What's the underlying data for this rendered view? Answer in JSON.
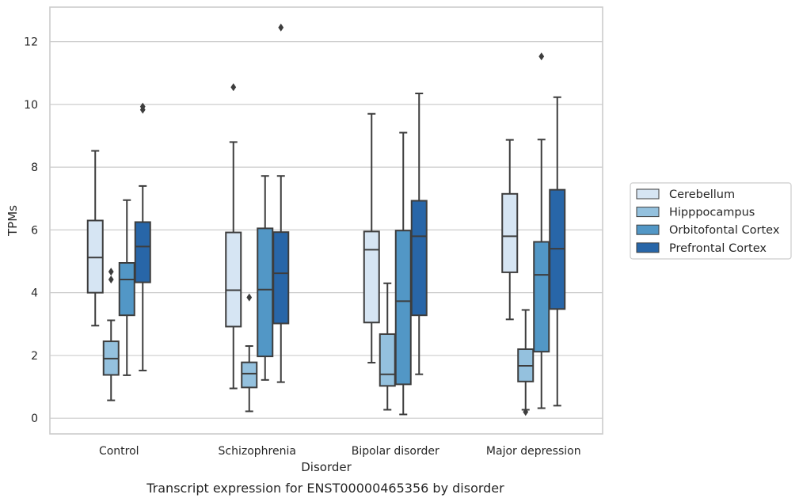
{
  "caption": "Transcript expression for ENST00000465356 by disorder",
  "chart_data": {
    "type": "box",
    "xlabel": "Disorder",
    "ylabel": "TPMs",
    "ylim": [
      -0.5,
      13.1
    ],
    "yticks": [
      0,
      2,
      4,
      6,
      8,
      10,
      12
    ],
    "grid": "horizontal",
    "legend_position": "right",
    "categories": [
      "Control",
      "Schizophrenia",
      "Bipolar disorder",
      "Major depression"
    ],
    "series": [
      {
        "name": "Cerebellum",
        "color": "#d6e5f3",
        "boxes": [
          {
            "whislo": 2.95,
            "q1": 4.0,
            "med": 5.12,
            "q3": 6.3,
            "whishi": 8.52,
            "fliers": []
          },
          {
            "whislo": 0.95,
            "q1": 2.92,
            "med": 4.08,
            "q3": 5.92,
            "whishi": 8.8,
            "fliers": [
              10.55
            ]
          },
          {
            "whislo": 1.77,
            "q1": 3.05,
            "med": 5.37,
            "q3": 5.95,
            "whishi": 9.7,
            "fliers": []
          },
          {
            "whislo": 3.15,
            "q1": 4.65,
            "med": 5.8,
            "q3": 7.15,
            "whishi": 8.87,
            "fliers": []
          }
        ]
      },
      {
        "name": "Hipppocampus",
        "color": "#94c1de",
        "boxes": [
          {
            "whislo": 0.57,
            "q1": 1.38,
            "med": 1.9,
            "q3": 2.45,
            "whishi": 3.12,
            "fliers": [
              4.42,
              4.67
            ]
          },
          {
            "whislo": 0.22,
            "q1": 0.98,
            "med": 1.42,
            "q3": 1.78,
            "whishi": 2.3,
            "fliers": [
              3.85
            ]
          },
          {
            "whislo": 0.27,
            "q1": 1.03,
            "med": 1.4,
            "q3": 2.68,
            "whishi": 4.3,
            "fliers": []
          },
          {
            "whislo": 0.27,
            "q1": 1.17,
            "med": 1.67,
            "q3": 2.2,
            "whishi": 3.45,
            "fliers": [
              0.2
            ]
          }
        ]
      },
      {
        "name": "Orbitofontal Cortex",
        "color": "#5297c6",
        "boxes": [
          {
            "whislo": 1.37,
            "q1": 3.28,
            "med": 4.42,
            "q3": 4.95,
            "whishi": 6.95,
            "fliers": []
          },
          {
            "whislo": 1.22,
            "q1": 1.97,
            "med": 4.1,
            "q3": 6.05,
            "whishi": 7.72,
            "fliers": []
          },
          {
            "whislo": 0.12,
            "q1": 1.08,
            "med": 3.73,
            "q3": 5.98,
            "whishi": 9.1,
            "fliers": []
          },
          {
            "whislo": 0.32,
            "q1": 2.12,
            "med": 4.57,
            "q3": 5.62,
            "whishi": 8.88,
            "fliers": [
              11.53
            ]
          }
        ]
      },
      {
        "name": "Prefrontal Cortex",
        "color": "#2866a8",
        "boxes": [
          {
            "whislo": 1.52,
            "q1": 4.33,
            "med": 5.47,
            "q3": 6.25,
            "whishi": 7.4,
            "fliers": [
              9.83,
              9.93
            ]
          },
          {
            "whislo": 1.15,
            "q1": 3.02,
            "med": 4.62,
            "q3": 5.93,
            "whishi": 7.72,
            "fliers": [
              12.45
            ]
          },
          {
            "whislo": 1.4,
            "q1": 3.28,
            "med": 5.8,
            "q3": 6.93,
            "whishi": 10.35,
            "fliers": []
          },
          {
            "whislo": 0.4,
            "q1": 3.48,
            "med": 5.4,
            "q3": 7.28,
            "whishi": 10.23,
            "fliers": []
          }
        ]
      }
    ]
  }
}
